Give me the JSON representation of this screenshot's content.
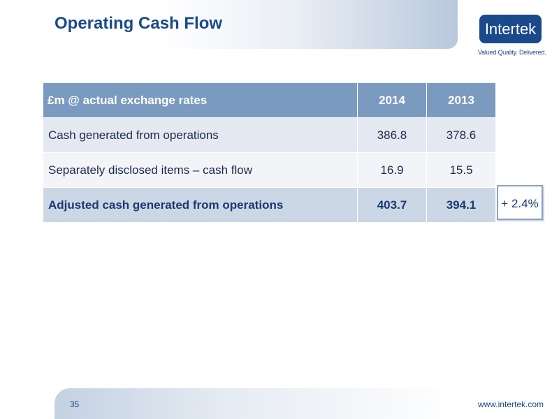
{
  "header": {
    "title": "Operating Cash Flow",
    "logo_text": "Intertek",
    "tagline": "Valued Quality. Delivered."
  },
  "table": {
    "columns": [
      "£m @ actual exchange rates",
      "2014",
      "2013"
    ],
    "rows": [
      {
        "label": "Cash generated from operations",
        "v2014": "386.8",
        "v2013": "378.6"
      },
      {
        "label": "Separately disclosed items – cash flow",
        "v2014": "16.9",
        "v2013": "15.5"
      },
      {
        "label": "Adjusted cash generated from operations",
        "v2014": "403.7",
        "v2013": "394.1"
      }
    ]
  },
  "growth": "+ 2.4%",
  "footer": {
    "page_number": "35",
    "url": "www.intertek.com"
  },
  "colors": {
    "brand_blue": "#1a4a8c",
    "header_row": "#7b9ac0",
    "total_row": "#ccd7e6"
  }
}
